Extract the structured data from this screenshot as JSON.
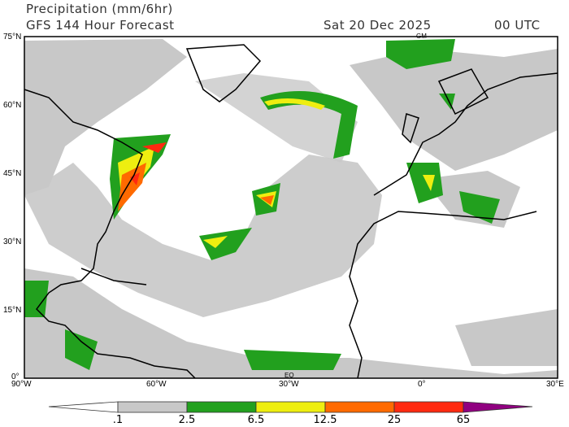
{
  "header": {
    "title": "Precipitation (mm/6hr)",
    "model": "GFS 144 Hour Forecast",
    "date": "Sat 20 Dec 2025",
    "time": "00 UTC"
  },
  "map": {
    "lat_labels": [
      "75°N",
      "60°N",
      "45°N",
      "30°N",
      "15°N",
      "0°"
    ],
    "lon_labels": [
      "90°W",
      "60°W",
      "30°W",
      "0°",
      "30°E"
    ],
    "annotations": [
      "GM",
      "EQ"
    ]
  },
  "colorbar": {
    "labels": [
      ".1",
      "2.5",
      "6.5",
      "12.5",
      "25",
      "65"
    ],
    "colors": [
      "#ffffff",
      "#c8c8c8",
      "#22a01e",
      "#eeee10",
      "#ff6a00",
      "#ff2a10",
      "#900080"
    ]
  }
}
